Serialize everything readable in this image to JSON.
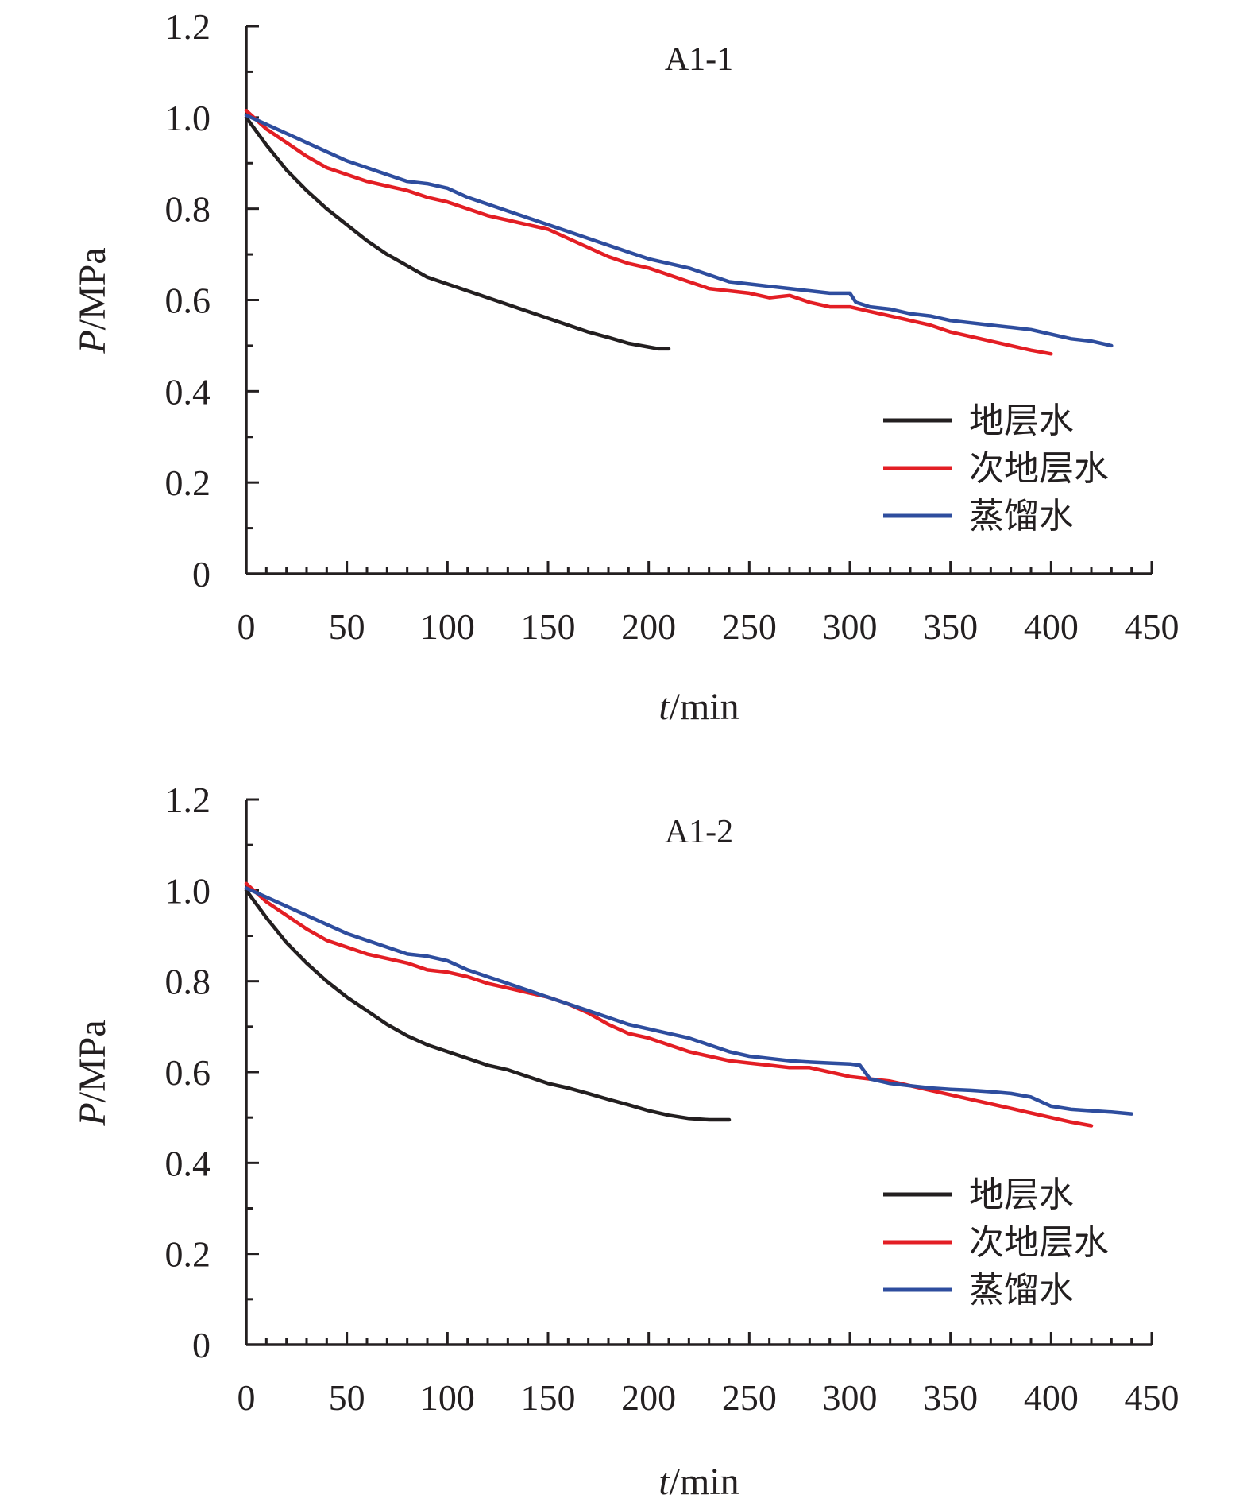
{
  "chart_data": [
    {
      "type": "line",
      "title": "A1-1",
      "xlabel": {
        "italic": "t",
        "rest": "/min"
      },
      "ylabel": {
        "italic": "P",
        "rest": "/MPa"
      },
      "xlim": [
        0,
        450
      ],
      "ylim": [
        0,
        1.2
      ],
      "xticks": [
        0,
        50,
        100,
        150,
        200,
        250,
        300,
        350,
        400,
        450
      ],
      "yticks": [
        0,
        0.2,
        0.4,
        0.6,
        0.8,
        1.0,
        1.2
      ],
      "ytick_labels": [
        "0",
        "0.2",
        "0.4",
        "0.6",
        "0.8",
        "1.0",
        "1.2"
      ],
      "grid": false,
      "legend_position": "bottom-right",
      "series": [
        {
          "name": "地层水",
          "color": "#231f20",
          "x": [
            0,
            10,
            20,
            30,
            40,
            50,
            60,
            70,
            80,
            90,
            100,
            110,
            120,
            130,
            140,
            150,
            160,
            170,
            180,
            190,
            200,
            205,
            210
          ],
          "y": [
            1.0,
            0.94,
            0.885,
            0.84,
            0.8,
            0.765,
            0.73,
            0.7,
            0.675,
            0.65,
            0.635,
            0.62,
            0.605,
            0.59,
            0.575,
            0.56,
            0.545,
            0.53,
            0.518,
            0.505,
            0.497,
            0.493,
            0.493
          ]
        },
        {
          "name": "次地层水",
          "color": "#e31e24",
          "x": [
            0,
            10,
            20,
            30,
            40,
            50,
            60,
            70,
            80,
            90,
            100,
            110,
            120,
            130,
            140,
            150,
            160,
            170,
            180,
            190,
            200,
            210,
            220,
            230,
            240,
            250,
            260,
            270,
            280,
            290,
            300,
            310,
            320,
            330,
            340,
            350,
            360,
            370,
            380,
            390,
            400
          ],
          "y": [
            1.015,
            0.975,
            0.945,
            0.915,
            0.89,
            0.875,
            0.86,
            0.85,
            0.84,
            0.825,
            0.815,
            0.8,
            0.785,
            0.775,
            0.765,
            0.755,
            0.735,
            0.715,
            0.695,
            0.68,
            0.67,
            0.655,
            0.64,
            0.625,
            0.62,
            0.615,
            0.605,
            0.61,
            0.595,
            0.585,
            0.585,
            0.575,
            0.565,
            0.555,
            0.545,
            0.53,
            0.52,
            0.51,
            0.5,
            0.49,
            0.482
          ]
        },
        {
          "name": "蒸馏水",
          "color": "#2e4d9e",
          "x": [
            0,
            10,
            20,
            30,
            40,
            50,
            60,
            70,
            80,
            90,
            100,
            110,
            120,
            130,
            140,
            150,
            160,
            170,
            180,
            190,
            200,
            210,
            220,
            230,
            240,
            250,
            260,
            270,
            280,
            290,
            300,
            303,
            310,
            320,
            330,
            340,
            350,
            360,
            370,
            380,
            390,
            400,
            410,
            420,
            430
          ],
          "y": [
            1.005,
            0.985,
            0.965,
            0.945,
            0.925,
            0.905,
            0.89,
            0.875,
            0.86,
            0.855,
            0.845,
            0.825,
            0.81,
            0.795,
            0.78,
            0.765,
            0.75,
            0.735,
            0.72,
            0.705,
            0.69,
            0.68,
            0.67,
            0.655,
            0.64,
            0.635,
            0.63,
            0.625,
            0.62,
            0.615,
            0.615,
            0.595,
            0.585,
            0.58,
            0.57,
            0.565,
            0.555,
            0.55,
            0.545,
            0.54,
            0.535,
            0.525,
            0.515,
            0.51,
            0.5
          ]
        }
      ]
    },
    {
      "type": "line",
      "title": "A1-2",
      "xlabel": {
        "italic": "t",
        "rest": "/min"
      },
      "ylabel": {
        "italic": "P",
        "rest": "/MPa"
      },
      "xlim": [
        0,
        450
      ],
      "ylim": [
        0,
        1.2
      ],
      "xticks": [
        0,
        50,
        100,
        150,
        200,
        250,
        300,
        350,
        400,
        450
      ],
      "yticks": [
        0,
        0.2,
        0.4,
        0.6,
        0.8,
        1.0,
        1.2
      ],
      "ytick_labels": [
        "0",
        "0.2",
        "0.4",
        "0.6",
        "0.8",
        "1.0",
        "1.2"
      ],
      "grid": false,
      "legend_position": "bottom-right",
      "series": [
        {
          "name": "地层水",
          "color": "#231f20",
          "x": [
            0,
            10,
            20,
            30,
            40,
            50,
            60,
            70,
            80,
            90,
            100,
            110,
            120,
            130,
            140,
            150,
            160,
            170,
            180,
            190,
            200,
            210,
            220,
            230,
            240
          ],
          "y": [
            1.0,
            0.94,
            0.885,
            0.84,
            0.8,
            0.765,
            0.735,
            0.705,
            0.68,
            0.66,
            0.645,
            0.63,
            0.615,
            0.605,
            0.59,
            0.575,
            0.565,
            0.553,
            0.54,
            0.528,
            0.515,
            0.505,
            0.498,
            0.495,
            0.495
          ]
        },
        {
          "name": "次地层水",
          "color": "#e31e24",
          "x": [
            0,
            10,
            20,
            30,
            40,
            50,
            60,
            70,
            80,
            90,
            100,
            110,
            120,
            130,
            140,
            150,
            160,
            170,
            180,
            190,
            200,
            210,
            220,
            230,
            240,
            250,
            260,
            270,
            280,
            290,
            300,
            310,
            320,
            330,
            340,
            350,
            360,
            370,
            380,
            390,
            400,
            410,
            420
          ],
          "y": [
            1.015,
            0.975,
            0.945,
            0.915,
            0.89,
            0.875,
            0.86,
            0.85,
            0.84,
            0.825,
            0.82,
            0.81,
            0.795,
            0.785,
            0.775,
            0.765,
            0.75,
            0.73,
            0.705,
            0.685,
            0.675,
            0.66,
            0.645,
            0.635,
            0.625,
            0.62,
            0.615,
            0.61,
            0.61,
            0.6,
            0.59,
            0.585,
            0.58,
            0.57,
            0.56,
            0.55,
            0.54,
            0.53,
            0.52,
            0.51,
            0.5,
            0.49,
            0.482
          ]
        },
        {
          "name": "蒸馏水",
          "color": "#2e4d9e",
          "x": [
            0,
            10,
            20,
            30,
            40,
            50,
            60,
            70,
            80,
            90,
            100,
            110,
            120,
            130,
            140,
            150,
            160,
            170,
            180,
            190,
            200,
            210,
            220,
            230,
            240,
            250,
            260,
            270,
            280,
            290,
            300,
            305,
            310,
            320,
            330,
            340,
            350,
            360,
            370,
            380,
            390,
            400,
            410,
            420,
            430,
            440
          ],
          "y": [
            1.005,
            0.985,
            0.965,
            0.945,
            0.925,
            0.905,
            0.89,
            0.875,
            0.86,
            0.855,
            0.845,
            0.825,
            0.81,
            0.795,
            0.78,
            0.765,
            0.75,
            0.735,
            0.72,
            0.705,
            0.695,
            0.685,
            0.675,
            0.66,
            0.645,
            0.635,
            0.63,
            0.625,
            0.622,
            0.62,
            0.618,
            0.615,
            0.585,
            0.575,
            0.57,
            0.565,
            0.562,
            0.56,
            0.557,
            0.553,
            0.545,
            0.525,
            0.518,
            0.515,
            0.512,
            0.508
          ]
        }
      ]
    }
  ]
}
